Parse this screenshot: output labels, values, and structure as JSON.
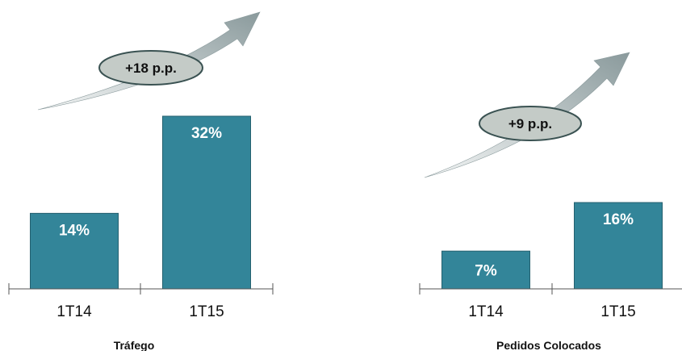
{
  "colors": {
    "bar": "#338599",
    "bar_edge": "#24606f",
    "badge_fill": "#c4cbc7",
    "badge_stroke": "#3a5252",
    "arrow_light": "#f4f6f6",
    "arrow_dark": "#8a9a9c"
  },
  "icons": [
    "growth-arrow-icon"
  ],
  "chart_data": [
    {
      "type": "bar",
      "title": "Tráfego",
      "categories": [
        "1T14",
        "1T15"
      ],
      "values": [
        14,
        32
      ],
      "value_labels": [
        "14%",
        "32%"
      ],
      "unit": "%",
      "change_badge": "+18 p.p.",
      "xlabel": "",
      "ylabel": "",
      "ylim": [
        0,
        32
      ],
      "grid": false,
      "legend": "none"
    },
    {
      "type": "bar",
      "title": "Pedidos Colocados",
      "categories": [
        "1T14",
        "1T15"
      ],
      "values": [
        7,
        16
      ],
      "value_labels": [
        "7%",
        "16%"
      ],
      "unit": "%",
      "change_badge": "+9 p.p.",
      "xlabel": "",
      "ylabel": "",
      "ylim": [
        0,
        32
      ],
      "grid": false,
      "legend": "none"
    }
  ]
}
